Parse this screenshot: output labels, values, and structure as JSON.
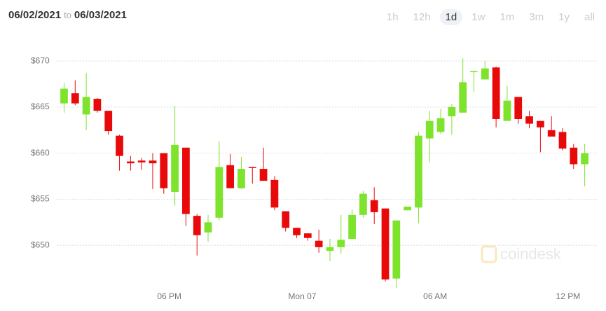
{
  "header": {
    "start_date": "06/02/2021",
    "separator": "to",
    "end_date": "06/03/2021",
    "range_buttons": [
      "1h",
      "12h",
      "1d",
      "1w",
      "1m",
      "3m",
      "1y",
      "all"
    ],
    "active_range": "1d"
  },
  "watermark": "coindesk",
  "chart_data": {
    "type": "candlestick",
    "open": [
      665.4,
      666.5,
      664.2,
      665.9,
      664.6,
      661.9,
      659.1,
      659.2,
      659.2,
      660.0,
      655.8,
      660.6,
      653.2,
      651.4,
      653.0,
      658.7,
      656.2,
      658.5,
      658.3,
      657.1,
      653.7,
      651.9,
      651.3,
      650.5,
      649.4,
      649.8,
      650.7,
      653.3,
      654.9,
      654.0,
      646.4,
      653.8,
      654.1,
      661.6,
      662.3,
      664.0,
      664.4,
      668.8,
      668.0,
      669.3,
      663.5,
      666.1,
      664.0,
      663.5,
      662.5,
      662.3,
      660.6,
      658.8
    ],
    "high": [
      667.6,
      667.9,
      668.7,
      666.0,
      664.6,
      662.0,
      659.7,
      659.5,
      660.0,
      660.0,
      665.1,
      660.6,
      653.4,
      653.3,
      661.3,
      659.9,
      659.6,
      658.5,
      660.6,
      657.5,
      653.7,
      651.9,
      651.3,
      651.7,
      650.7,
      653.3,
      653.9,
      655.9,
      656.3,
      654.0,
      652.7,
      654.2,
      662.3,
      664.6,
      664.8,
      665.3,
      670.3,
      669.0,
      670.0,
      669.4,
      667.3,
      666.1,
      664.6,
      663.5,
      664.0,
      662.7,
      661.0,
      661.0
    ],
    "low": [
      664.4,
      665.2,
      662.5,
      664.4,
      662.0,
      658.1,
      658.1,
      658.2,
      656.1,
      655.6,
      654.3,
      652.1,
      648.9,
      650.4,
      652.7,
      656.2,
      656.1,
      656.7,
      657.0,
      653.8,
      651.5,
      650.8,
      650.5,
      649.2,
      648.3,
      649.1,
      650.7,
      653.0,
      652.3,
      646.1,
      645.4,
      653.8,
      652.4,
      659.0,
      662.1,
      662.0,
      664.4,
      666.6,
      668.0,
      662.8,
      663.5,
      663.2,
      662.7,
      660.1,
      661.8,
      660.3,
      658.3,
      656.4
    ],
    "close": [
      667.0,
      665.4,
      666.1,
      664.6,
      662.4,
      659.7,
      658.9,
      659.0,
      658.9,
      656.2,
      660.9,
      653.4,
      651.1,
      652.5,
      658.5,
      656.2,
      658.3,
      658.4,
      657.0,
      654.1,
      651.9,
      651.1,
      650.8,
      649.8,
      649.8,
      650.6,
      653.3,
      655.6,
      653.6,
      646.3,
      652.7,
      654.2,
      661.9,
      663.5,
      663.8,
      665.0,
      667.7,
      668.9,
      669.2,
      663.7,
      665.7,
      663.7,
      663.2,
      662.8,
      661.8,
      660.5,
      658.8,
      660.0
    ],
    "up_color": "#7ee32c",
    "down_color": "#e80a0a",
    "ylim": [
      644.7,
      671.3
    ],
    "yticks": [
      {
        "value": 650,
        "label": "$650"
      },
      {
        "value": 655,
        "label": "$655"
      },
      {
        "value": 660,
        "label": "$660"
      },
      {
        "value": 665,
        "label": "$665"
      },
      {
        "value": 670,
        "label": "$670"
      }
    ],
    "xlim": [
      -0.6,
      48.1
    ],
    "xticks": [
      {
        "value": 9.5,
        "label": "06 PM"
      },
      {
        "value": 21.5,
        "label": "Mon 07"
      },
      {
        "value": 33.5,
        "label": "06 AM"
      },
      {
        "value": 45.5,
        "label": "12 PM"
      }
    ],
    "grid": true
  }
}
